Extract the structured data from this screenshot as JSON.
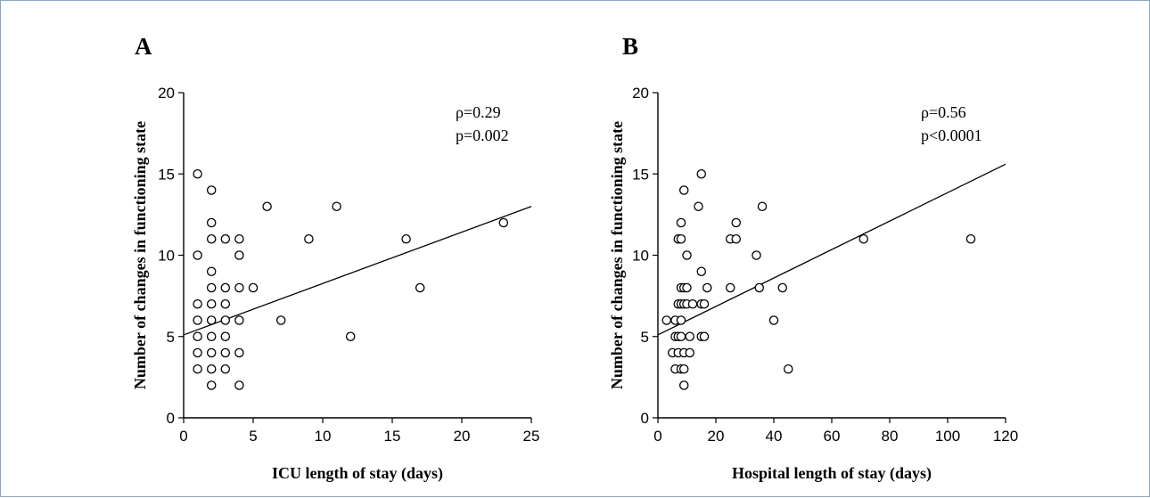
{
  "chart_data": [
    {
      "panel": "A",
      "type": "scatter",
      "title": "",
      "xlabel": "ICU length of  stay (days)",
      "ylabel": "Number of changes in functioning state",
      "xlim": [
        0,
        25
      ],
      "ylim": [
        0,
        20
      ],
      "xticks": [
        0,
        5,
        10,
        15,
        20,
        25
      ],
      "yticks": [
        0,
        5,
        10,
        15,
        20
      ],
      "annotations": [
        "ρ=0.29",
        "p=0.002"
      ],
      "fit_line": {
        "x": [
          0,
          25
        ],
        "y": [
          5.1,
          13.0
        ]
      },
      "points": [
        [
          1,
          15
        ],
        [
          1,
          10
        ],
        [
          1,
          7
        ],
        [
          1,
          6
        ],
        [
          1,
          5
        ],
        [
          1,
          4
        ],
        [
          1,
          3
        ],
        [
          2,
          14
        ],
        [
          2,
          12
        ],
        [
          2,
          11
        ],
        [
          2,
          9
        ],
        [
          2,
          8
        ],
        [
          2,
          7
        ],
        [
          2,
          6
        ],
        [
          2,
          5
        ],
        [
          2,
          4
        ],
        [
          2,
          3
        ],
        [
          2,
          2
        ],
        [
          3,
          11
        ],
        [
          3,
          8
        ],
        [
          3,
          7
        ],
        [
          3,
          6
        ],
        [
          3,
          5
        ],
        [
          3,
          4
        ],
        [
          3,
          3
        ],
        [
          4,
          11
        ],
        [
          4,
          10
        ],
        [
          4,
          8
        ],
        [
          4,
          6
        ],
        [
          4,
          4
        ],
        [
          4,
          2
        ],
        [
          5,
          8
        ],
        [
          6,
          13
        ],
        [
          7,
          6
        ],
        [
          9,
          11
        ],
        [
          11,
          13
        ],
        [
          12,
          5
        ],
        [
          16,
          11
        ],
        [
          17,
          8
        ],
        [
          23,
          12
        ]
      ]
    },
    {
      "panel": "B",
      "type": "scatter",
      "title": "",
      "xlabel": "Hospital length of stay (days)",
      "ylabel": "Number of changes in functioning state",
      "xlim": [
        0,
        120
      ],
      "ylim": [
        0,
        20
      ],
      "xticks": [
        0,
        20,
        40,
        60,
        80,
        100,
        120
      ],
      "yticks": [
        0,
        5,
        10,
        15,
        20
      ],
      "annotations": [
        "ρ=0.56",
        "p<0.0001"
      ],
      "fit_line": {
        "x": [
          0,
          120
        ],
        "y": [
          5.1,
          15.6
        ]
      },
      "points": [
        [
          3,
          6
        ],
        [
          5,
          4
        ],
        [
          6,
          5
        ],
        [
          6,
          3
        ],
        [
          6,
          6
        ],
        [
          7,
          11
        ],
        [
          7,
          7
        ],
        [
          7,
          5
        ],
        [
          7,
          4
        ],
        [
          8,
          11
        ],
        [
          8,
          12
        ],
        [
          8,
          8
        ],
        [
          8,
          7
        ],
        [
          8,
          6
        ],
        [
          8,
          5
        ],
        [
          8,
          3
        ],
        [
          9,
          14
        ],
        [
          9,
          8
        ],
        [
          9,
          7
        ],
        [
          9,
          4
        ],
        [
          9,
          3
        ],
        [
          9,
          2
        ],
        [
          10,
          10
        ],
        [
          10,
          8
        ],
        [
          10,
          7
        ],
        [
          11,
          5
        ],
        [
          11,
          4
        ],
        [
          12,
          7
        ],
        [
          14,
          13
        ],
        [
          15,
          15
        ],
        [
          15,
          9
        ],
        [
          15,
          7
        ],
        [
          15,
          5
        ],
        [
          16,
          7
        ],
        [
          16,
          5
        ],
        [
          17,
          8
        ],
        [
          25,
          11
        ],
        [
          25,
          8
        ],
        [
          27,
          12
        ],
        [
          27,
          11
        ],
        [
          34,
          10
        ],
        [
          35,
          8
        ],
        [
          36,
          13
        ],
        [
          40,
          6
        ],
        [
          43,
          8
        ],
        [
          45,
          3
        ],
        [
          71,
          11
        ],
        [
          108,
          11
        ]
      ]
    }
  ]
}
